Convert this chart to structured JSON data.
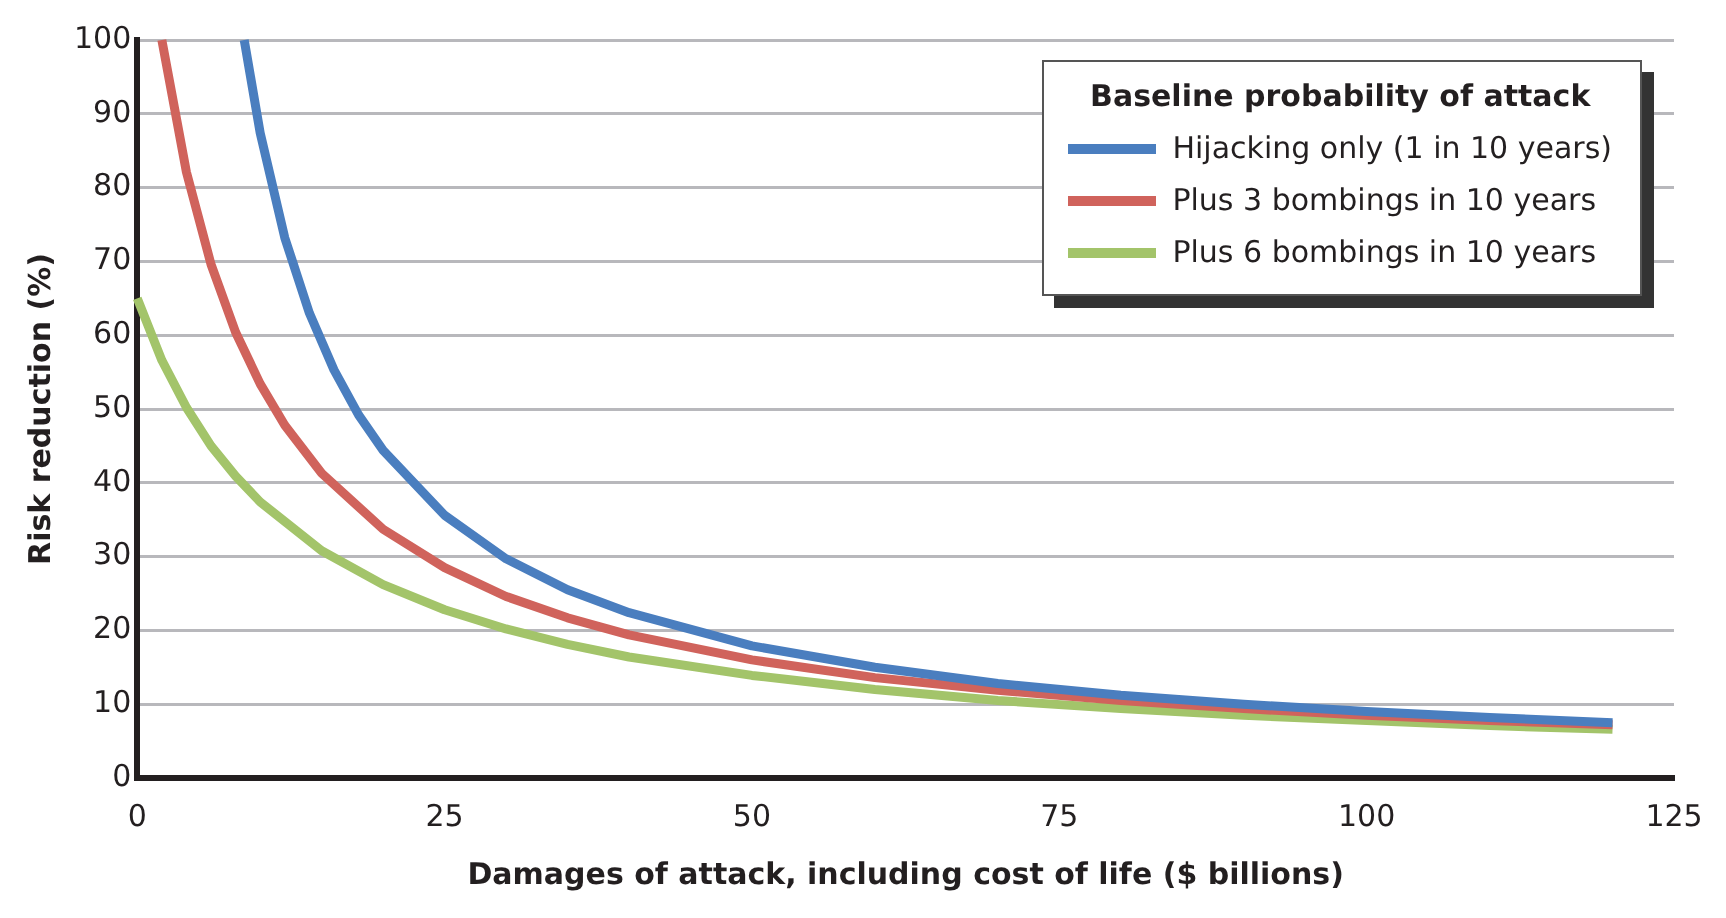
{
  "chart_data": {
    "type": "line",
    "xlabel": "Damages of attack, including cost of life ($ billions)",
    "ylabel": "Risk reduction (%)",
    "legend_title": "Baseline probability of attack",
    "xlim": [
      0,
      125
    ],
    "xticks": [
      0,
      25,
      50,
      75,
      100,
      125
    ],
    "ylim": [
      0,
      100
    ],
    "yticks": [
      0,
      10,
      20,
      30,
      40,
      50,
      60,
      70,
      80,
      90,
      100
    ],
    "grid": "y",
    "legend": "top right",
    "marker": "none",
    "line_style": "solid",
    "series": [
      {
        "name": "Hijacking only (1 in 10 years)",
        "color": "#4a7ebf",
        "x": [
          8.7,
          10,
          12,
          14,
          16,
          18,
          20,
          25,
          30,
          35,
          40,
          50,
          60,
          70,
          80,
          90,
          100,
          110,
          120
        ],
        "values": [
          100,
          87.4,
          73.2,
          63.0,
          55.3,
          49.2,
          44.4,
          35.6,
          29.7,
          25.5,
          22.4,
          17.9,
          15.0,
          12.8,
          11.2,
          10.0,
          9.0,
          8.2,
          7.5
        ]
      },
      {
        "name": "Plus 3 bombings in 10 years",
        "color": "#d0635c",
        "x": [
          2,
          4,
          6,
          8,
          10,
          12,
          15,
          20,
          25,
          30,
          35,
          40,
          50,
          60,
          70,
          80,
          90,
          100,
          110,
          120
        ],
        "values": [
          100,
          82.1,
          69.6,
          60.4,
          53.4,
          47.8,
          41.3,
          33.7,
          28.5,
          24.6,
          21.7,
          19.4,
          16.0,
          13.6,
          11.9,
          10.5,
          9.4,
          8.5,
          7.8,
          7.2
        ]
      },
      {
        "name": "Plus 6 bombings in 10 years",
        "color": "#a3c46a",
        "x": [
          0,
          2,
          4,
          6,
          8,
          10,
          15,
          20,
          25,
          30,
          35,
          40,
          50,
          60,
          70,
          80,
          90,
          100,
          110,
          120
        ],
        "values": [
          65,
          56.6,
          50.2,
          45.0,
          40.9,
          37.4,
          30.8,
          26.2,
          22.8,
          20.2,
          18.1,
          16.4,
          13.9,
          12.0,
          10.5,
          9.4,
          8.5,
          7.8,
          7.1,
          6.6
        ]
      }
    ]
  }
}
